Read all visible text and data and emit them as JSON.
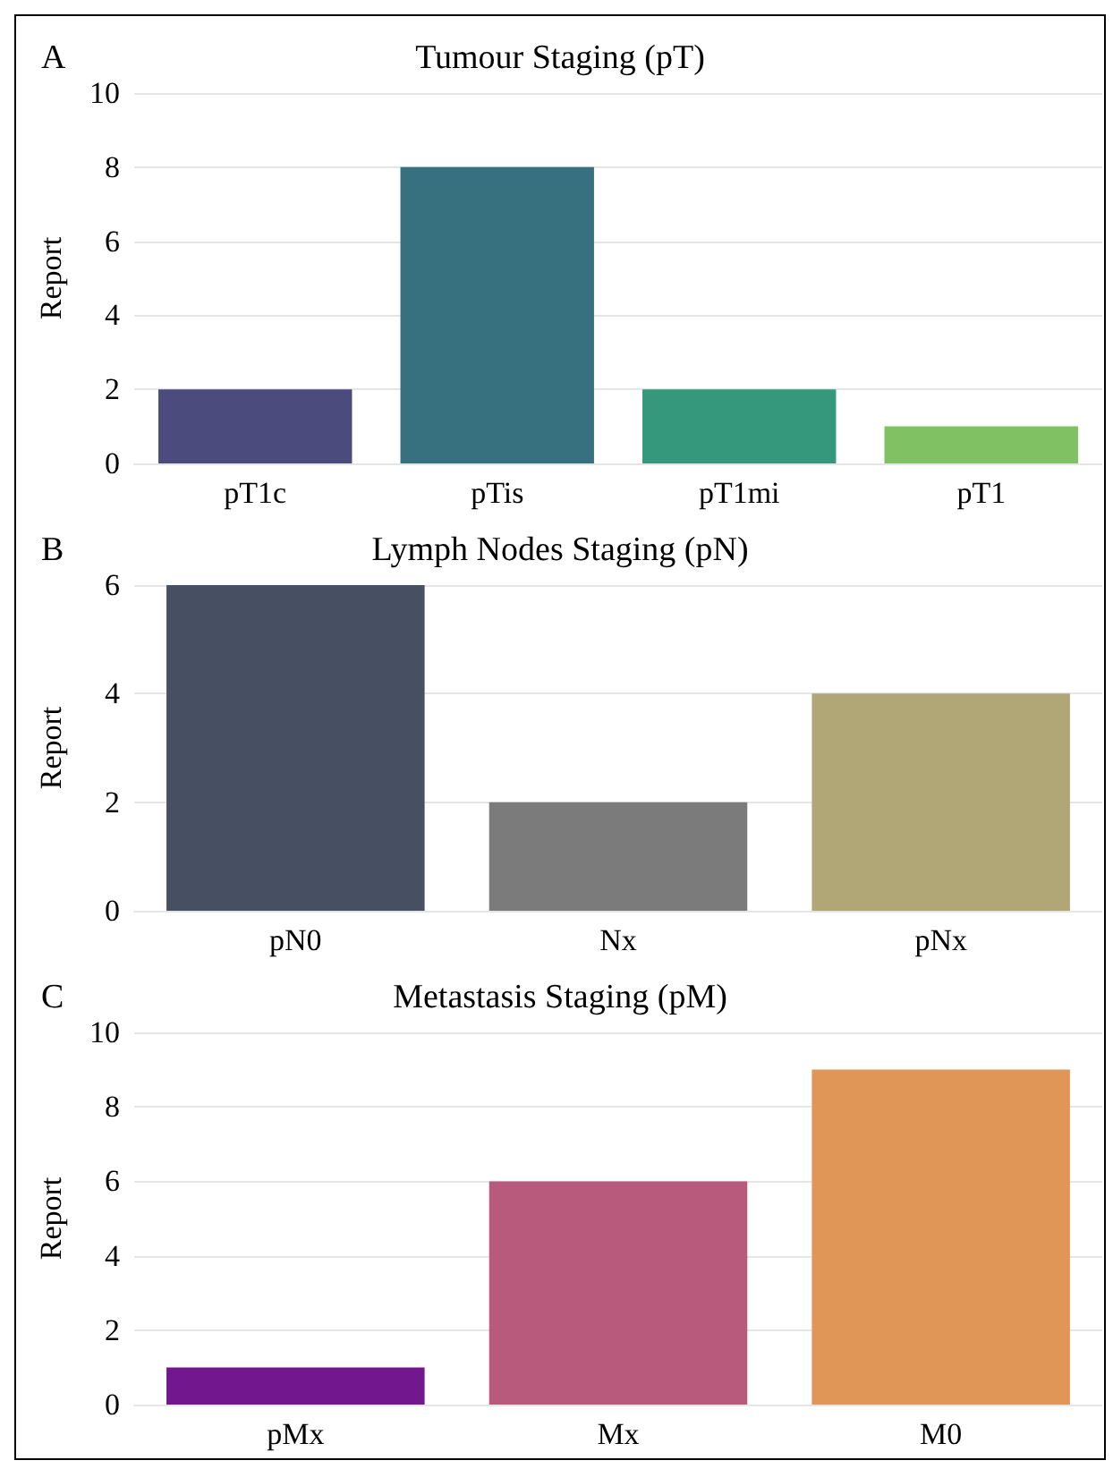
{
  "chart_data": [
    {
      "type": "bar",
      "title": "Tumour Staging (pT)",
      "ylabel": "Report",
      "annotations": [
        "A"
      ],
      "categories": [
        "pT1c",
        "pTis",
        "pT1mi",
        "pT1"
      ],
      "values": [
        2,
        8,
        2,
        1
      ],
      "colors": [
        "#4b4c7d",
        "#37717f",
        "#35987d",
        "#80c163"
      ],
      "ylim": [
        0,
        10
      ],
      "yticks": [
        0,
        2,
        4,
        6,
        8,
        10
      ],
      "grid": "y"
    },
    {
      "type": "bar",
      "title": "Lymph Nodes Staging (pN)",
      "ylabel": "Report",
      "annotations": [
        "B"
      ],
      "categories": [
        "pN0",
        "Nx",
        "pNx"
      ],
      "values": [
        6,
        2,
        4
      ],
      "colors": [
        "#475063",
        "#7b7b7b",
        "#b1a676"
      ],
      "ylim": [
        0,
        6
      ],
      "yticks": [
        0,
        2,
        4,
        6
      ],
      "grid": "y"
    },
    {
      "type": "bar",
      "title": "Metastasis Staging (pM)",
      "ylabel": "Report",
      "annotations": [
        "C"
      ],
      "categories": [
        "pMx",
        "Mx",
        "M0"
      ],
      "values": [
        1,
        6,
        9
      ],
      "colors": [
        "#73178f",
        "#b85a7c",
        "#e09656"
      ],
      "ylim": [
        0,
        10
      ],
      "yticks": [
        0,
        2,
        4,
        6,
        8,
        10
      ],
      "grid": "y"
    }
  ]
}
